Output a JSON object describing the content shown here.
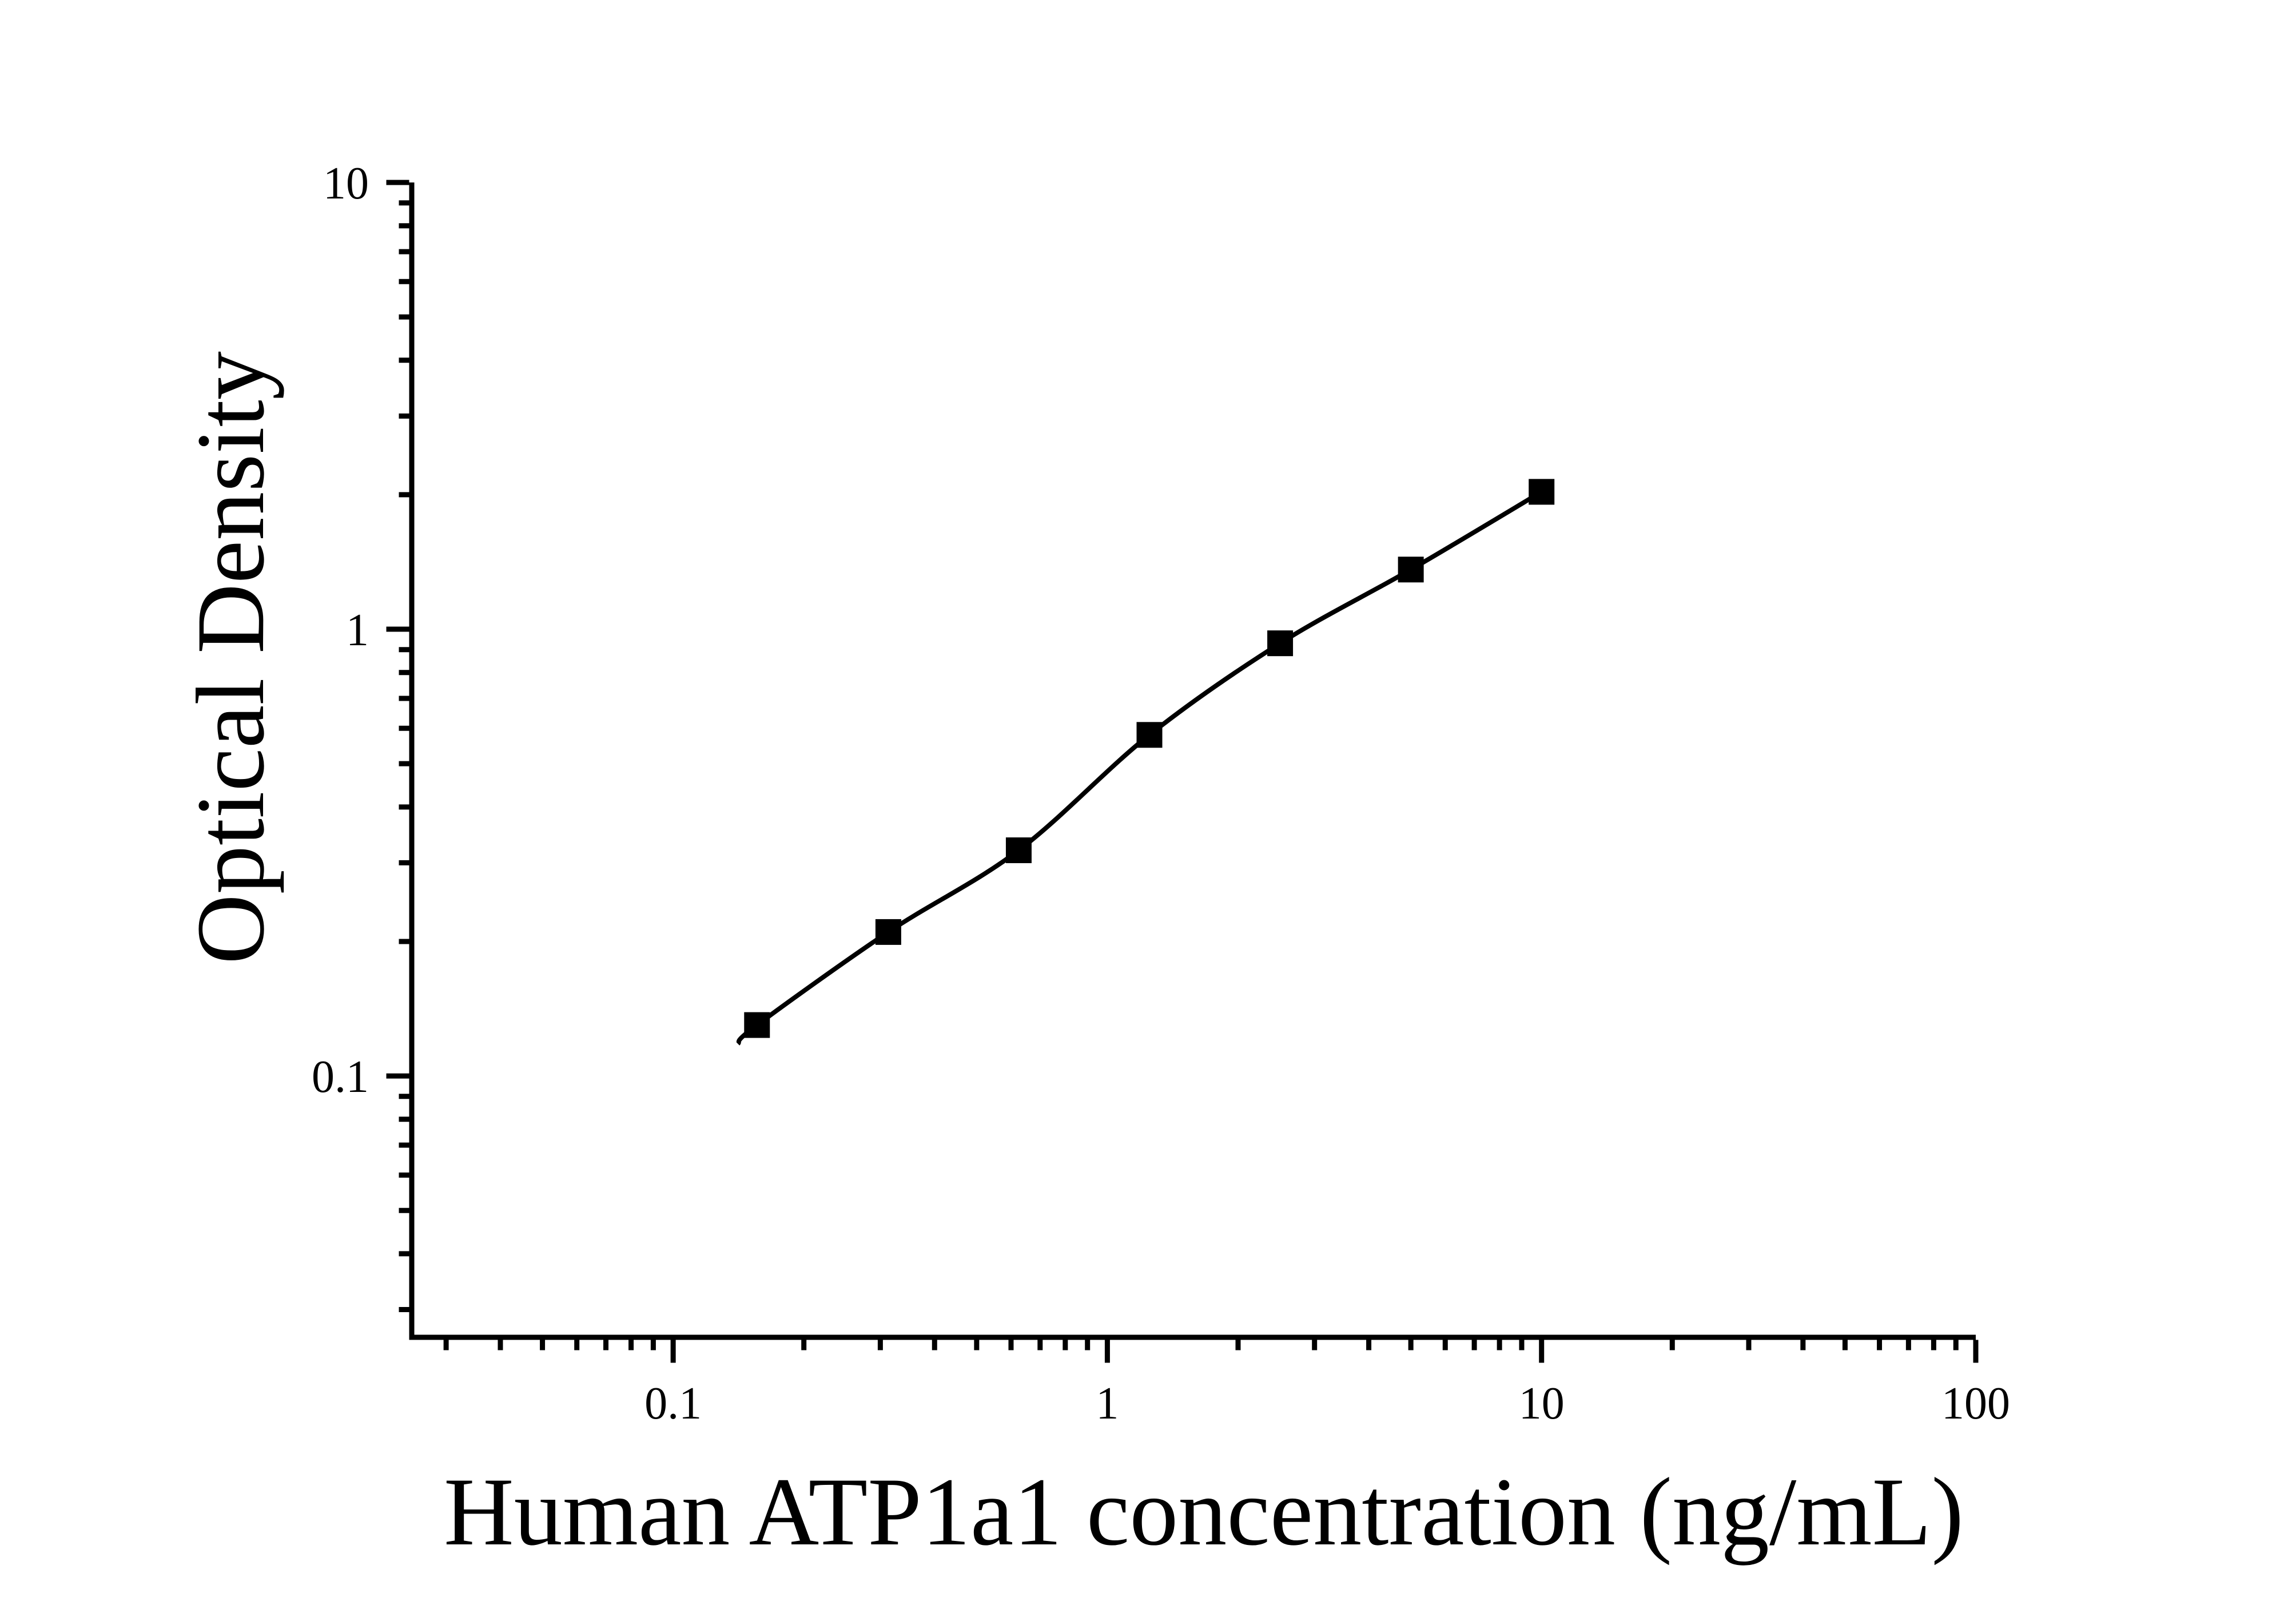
{
  "figure": {
    "background_color": "#ffffff",
    "foreground_color": "#000000"
  },
  "chart_data": {
    "type": "scatter",
    "subtype": "standard-curve-with-fitted-line",
    "title": "",
    "xlabel": "Human ATP1a1 concentration (ng/mL)",
    "ylabel": "Optical Density",
    "x_scale": "log",
    "y_scale": "log",
    "xlim": [
      0.025,
      100
    ],
    "ylim": [
      0.026,
      10
    ],
    "grid": false,
    "legend": "none",
    "marker": "filled-square",
    "marker_color": "#000000",
    "line_color": "#000000",
    "series": [
      {
        "name": "standard-curve",
        "x": [
          0.156,
          0.313,
          0.625,
          1.25,
          2.5,
          5,
          10
        ],
        "y": [
          0.13,
          0.21,
          0.32,
          0.58,
          0.93,
          1.36,
          2.03
        ]
      }
    ],
    "curve_lead_in_point": {
      "x": 0.141,
      "y": 0.118
    },
    "x_major_ticks": [
      0.1,
      1,
      10,
      100
    ],
    "x_major_tick_labels": [
      "0.1",
      "1",
      "10",
      "100"
    ],
    "y_major_ticks": [
      0.1,
      1,
      10
    ],
    "y_major_tick_labels": [
      "0.1",
      "1",
      "10"
    ]
  }
}
